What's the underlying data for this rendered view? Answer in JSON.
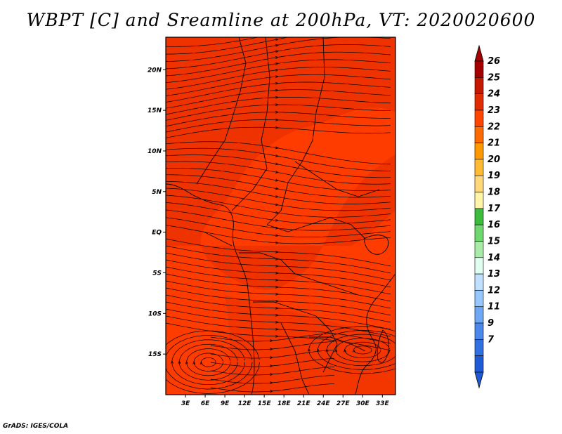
{
  "title": "WBPT [C] and Sreamline at 200hPa, VT: 2020020600",
  "credit": "GrADS: IGES/COLA",
  "map": {
    "lon_range": [
      0,
      35
    ],
    "lat_range": [
      -20,
      24
    ],
    "lon_ticks": [
      {
        "value": 3,
        "label": "3E"
      },
      {
        "value": 6,
        "label": "6E"
      },
      {
        "value": 9,
        "label": "9E"
      },
      {
        "value": 12,
        "label": "12E"
      },
      {
        "value": 15,
        "label": "15E"
      },
      {
        "value": 18,
        "label": "18E"
      },
      {
        "value": 21,
        "label": "21E"
      },
      {
        "value": 24,
        "label": "24E"
      },
      {
        "value": 27,
        "label": "27E"
      },
      {
        "value": 30,
        "label": "30E"
      },
      {
        "value": 33,
        "label": "33E"
      }
    ],
    "lat_ticks": [
      {
        "value": 20,
        "label": "20N"
      },
      {
        "value": 15,
        "label": "15N"
      },
      {
        "value": 10,
        "label": "10N"
      },
      {
        "value": 5,
        "label": "5N"
      },
      {
        "value": 0,
        "label": "EQ"
      },
      {
        "value": -5,
        "label": "5S"
      },
      {
        "value": -10,
        "label": "10S"
      },
      {
        "value": -15,
        "label": "15S"
      }
    ],
    "base_color": "#ff3c00",
    "darker_color": "#e12b00"
  },
  "colorbar": {
    "levels": [
      "26",
      "25",
      "24",
      "23",
      "22",
      "21",
      "20",
      "19",
      "18",
      "17",
      "16",
      "15",
      "14",
      "13",
      "12",
      "11",
      "9",
      "7"
    ],
    "colors": [
      "#a50000",
      "#c41800",
      "#e12b00",
      "#ff4500",
      "#ff6a00",
      "#ff9900",
      "#ffbb33",
      "#ffd87a",
      "#fff4a8",
      "#3cbc3c",
      "#6ed86e",
      "#a8eca8",
      "#e0fff0",
      "#c0e0ff",
      "#96c8ff",
      "#6ea8f5",
      "#4b88ec",
      "#3070e0",
      "#1f5ad6"
    ]
  }
}
